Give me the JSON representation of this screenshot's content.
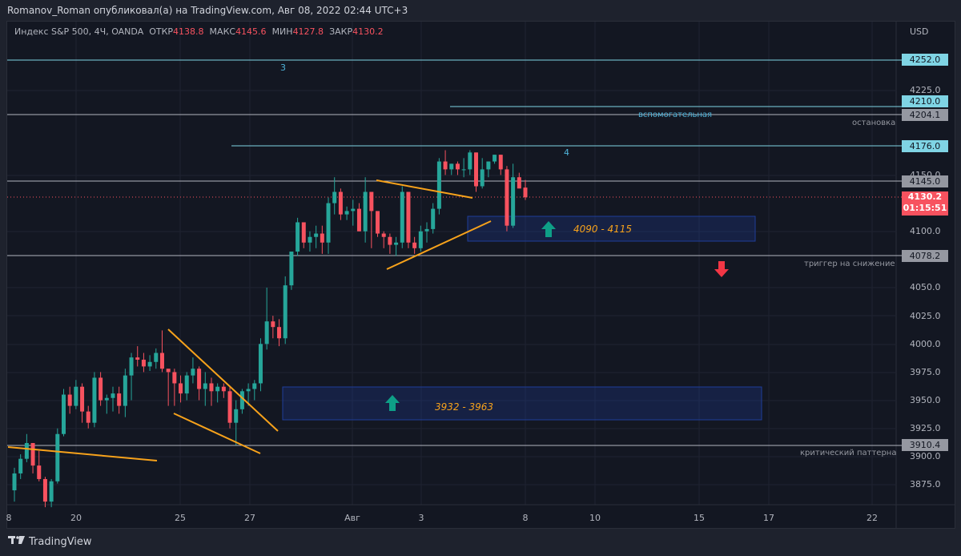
{
  "header": {
    "publisher_line": "Romanov_Roman опубликовал(а) на TradingView.com, Авг 08, 2022 02:44 UTC+3"
  },
  "legend": {
    "symbol": "Индекс S&P 500, 4Ч, OANDA",
    "open_label": "ОТКР",
    "open": "4138.8",
    "high_label": "МАКС",
    "high": "4145.6",
    "low_label": "МИН",
    "low": "4127.8",
    "close_label": "ЗАКР",
    "close": "4130.2"
  },
  "price_axis": {
    "currency": "USD",
    "ticks": [
      "4225.0",
      "4150.0",
      "4100.0",
      "4050.0",
      "4025.0",
      "4000.0",
      "3975.0",
      "3950.0",
      "3925.0",
      "3900.0",
      "3875.0"
    ]
  },
  "price_tags": {
    "level_4252": "4252.0",
    "level_4210": "4210.0",
    "level_4204": "4204.1",
    "level_4176": "4176.0",
    "level_4145": "4145.0",
    "current_price": "4130.2",
    "countdown": "01:15:51",
    "level_4078": "4078.2",
    "level_3910": "3910.4"
  },
  "time_axis": {
    "ticks": [
      "8",
      "20",
      "25",
      "27",
      "Авг",
      "3",
      "8",
      "10",
      "15",
      "17",
      "22"
    ]
  },
  "annotations": {
    "wave3": "3",
    "wave4": "4",
    "auxiliary": "вспомогательная",
    "stop": "остановка",
    "trigger_down": "триггер на снижение",
    "critical_pattern": "критический паттерна",
    "zone_upper": "4090 - 4115",
    "zone_lower": "3932 - 3963"
  },
  "footer": {
    "brand": "TradingView"
  },
  "colors": {
    "up": "#26a69a",
    "down": "#f7525f",
    "trendline": "#f7a21b",
    "level_cyan": "#7fd4e4",
    "level_gray": "#b2b5be",
    "zone_border": "#1f3d99"
  },
  "chart_data": {
    "type": "candlestick",
    "title": "Индекс S&P 500, 4Ч, OANDA",
    "ylabel": "USD",
    "ylim": [
      3860,
      4275
    ],
    "x_ticks": [
      "8",
      "20",
      "25",
      "27",
      "Авг",
      "3",
      "8",
      "10",
      "15",
      "17",
      "22"
    ],
    "last_ohlc": {
      "open": 4138.8,
      "high": 4145.6,
      "low": 4127.8,
      "close": 4130.2
    },
    "horizontal_levels": [
      {
        "price": 4252.0,
        "label": "3"
      },
      {
        "price": 4210.0,
        "label": "вспомогательная"
      },
      {
        "price": 4204.1,
        "label": "остановка"
      },
      {
        "price": 4176.0,
        "label": "4"
      },
      {
        "price": 4145.0
      },
      {
        "price": 4078.2,
        "label": "триггер на снижение"
      },
      {
        "price": 3910.4,
        "label": "критический паттерна"
      }
    ],
    "zones": [
      {
        "from": 4090,
        "to": 4115,
        "label": "4090 - 4115",
        "direction": "up"
      },
      {
        "from": 3932,
        "to": 3963,
        "label": "3932 - 3963",
        "direction": "up"
      }
    ],
    "candles": [
      [
        3870,
        3890,
        3860,
        3885
      ],
      [
        3885,
        3902,
        3880,
        3898
      ],
      [
        3898,
        3920,
        3895,
        3912
      ],
      [
        3912,
        3912,
        3885,
        3892
      ],
      [
        3892,
        3905,
        3878,
        3880
      ],
      [
        3880,
        3882,
        3855,
        3860
      ],
      [
        3860,
        3880,
        3855,
        3878
      ],
      [
        3878,
        3925,
        3876,
        3920
      ],
      [
        3920,
        3960,
        3918,
        3955
      ],
      [
        3955,
        3962,
        3938,
        3945
      ],
      [
        3945,
        3968,
        3942,
        3962
      ],
      [
        3962,
        3965,
        3930,
        3940
      ],
      [
        3940,
        3945,
        3925,
        3930
      ],
      [
        3930,
        3975,
        3926,
        3970
      ],
      [
        3970,
        3975,
        3945,
        3950
      ],
      [
        3950,
        3955,
        3938,
        3952
      ],
      [
        3952,
        3962,
        3940,
        3956
      ],
      [
        3956,
        3962,
        3938,
        3945
      ],
      [
        3945,
        3978,
        3935,
        3972
      ],
      [
        3972,
        3992,
        3950,
        3988
      ],
      [
        3988,
        3998,
        3980,
        3986
      ],
      [
        3986,
        3992,
        3975,
        3980
      ],
      [
        3980,
        3990,
        3976,
        3984
      ],
      [
        3984,
        3996,
        3978,
        3992
      ],
      [
        3992,
        4012,
        3975,
        3978
      ],
      [
        3978,
        3975,
        3945,
        3975
      ],
      [
        3975,
        3978,
        3945,
        3965
      ],
      [
        3965,
        3972,
        3948,
        3956
      ],
      [
        3956,
        3975,
        3950,
        3972
      ],
      [
        3972,
        3988,
        3965,
        3978
      ],
      [
        3978,
        3980,
        3950,
        3960
      ],
      [
        3960,
        3975,
        3945,
        3965
      ],
      [
        3965,
        3970,
        3945,
        3958
      ],
      [
        3958,
        3965,
        3948,
        3962
      ],
      [
        3962,
        3965,
        3952,
        3958
      ],
      [
        3958,
        3962,
        3925,
        3930
      ],
      [
        3930,
        3950,
        3910,
        3942
      ],
      [
        3942,
        3960,
        3938,
        3958
      ],
      [
        3958,
        3965,
        3945,
        3960
      ],
      [
        3960,
        3968,
        3950,
        3965
      ],
      [
        3965,
        4005,
        3958,
        4000
      ],
      [
        4000,
        4050,
        3995,
        4020
      ],
      [
        4020,
        4025,
        4005,
        4015
      ],
      [
        4015,
        4022,
        3998,
        4005
      ],
      [
        4005,
        4060,
        4000,
        4052
      ],
      [
        4052,
        4080,
        4048,
        4082
      ],
      [
        4082,
        4112,
        4078,
        4108
      ],
      [
        4108,
        4108,
        4085,
        4090
      ],
      [
        4090,
        4100,
        4082,
        4095
      ],
      [
        4095,
        4105,
        4085,
        4098
      ],
      [
        4098,
        4105,
        4080,
        4090
      ],
      [
        4090,
        4130,
        4080,
        4125
      ],
      [
        4125,
        4148,
        4115,
        4135
      ],
      [
        4135,
        4138,
        4110,
        4115
      ],
      [
        4115,
        4122,
        4110,
        4118
      ],
      [
        4118,
        4128,
        4105,
        4120
      ],
      [
        4120,
        4125,
        4100,
        4100
      ],
      [
        4100,
        4148,
        4090,
        4135
      ],
      [
        4135,
        4128,
        4085,
        4118
      ],
      [
        4118,
        4115,
        4095,
        4098
      ],
      [
        4098,
        4100,
        4085,
        4095
      ],
      [
        4095,
        4098,
        4080,
        4088
      ],
      [
        4088,
        4095,
        4078,
        4090
      ],
      [
        4090,
        4140,
        4085,
        4135
      ],
      [
        4135,
        4135,
        4085,
        4090
      ],
      [
        4090,
        4095,
        4080,
        4085
      ],
      [
        4085,
        4105,
        4082,
        4100
      ],
      [
        4100,
        4108,
        4090,
        4102
      ],
      [
        4102,
        4125,
        4098,
        4120
      ],
      [
        4120,
        4165,
        4115,
        4162
      ],
      [
        4162,
        4172,
        4150,
        4155
      ],
      [
        4155,
        4160,
        4150,
        4160
      ],
      [
        4160,
        4162,
        4150,
        4155
      ],
      [
        4155,
        4165,
        4148,
        4155
      ],
      [
        4155,
        4172,
        4150,
        4170
      ],
      [
        4170,
        4170,
        4135,
        4140
      ],
      [
        4140,
        4165,
        4138,
        4155
      ],
      [
        4155,
        4162,
        4148,
        4162
      ],
      [
        4162,
        4168,
        4160,
        4168
      ],
      [
        4168,
        4168,
        4150,
        4155
      ],
      [
        4155,
        4158,
        4100,
        4105
      ],
      [
        4105,
        4160,
        4103,
        4148
      ],
      [
        4148,
        4152,
        4140,
        4138
      ],
      [
        4138.8,
        4145.6,
        4127.8,
        4130.2
      ]
    ]
  }
}
